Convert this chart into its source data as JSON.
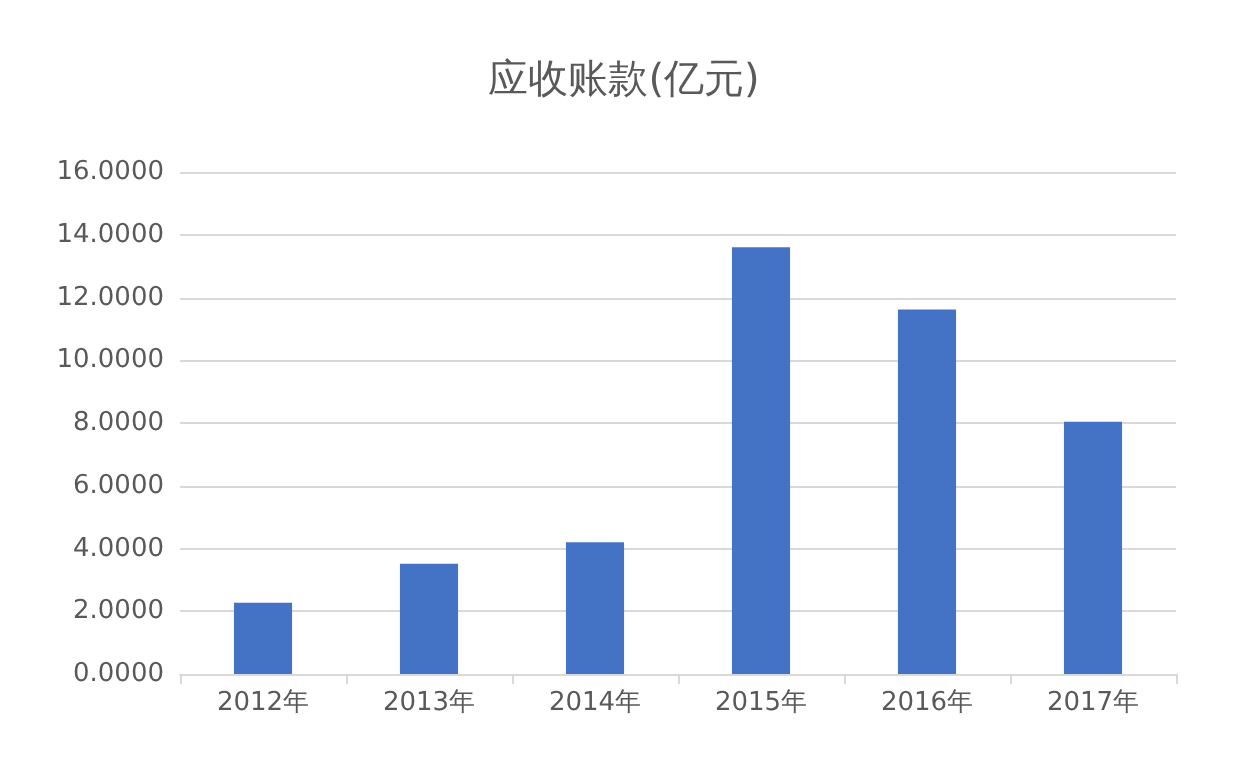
{
  "chart_data": {
    "type": "bar",
    "title": "应收账款(亿元)",
    "categories": [
      "2012年",
      "2013年",
      "2014年",
      "2015年",
      "2016年",
      "2017年"
    ],
    "values": [
      2.27,
      3.51,
      4.2,
      13.6,
      11.62,
      8.04
    ],
    "color": "#4472c4",
    "ylim": [
      0,
      16
    ],
    "yticks": [
      {
        "value": 0,
        "label": "0.0000"
      },
      {
        "value": 2,
        "label": "2.0000"
      },
      {
        "value": 4,
        "label": "4.0000"
      },
      {
        "value": 6,
        "label": "6.0000"
      },
      {
        "value": 8,
        "label": "8.0000"
      },
      {
        "value": 10,
        "label": "10.0000"
      },
      {
        "value": 12,
        "label": "12.0000"
      },
      {
        "value": 14,
        "label": "14.0000"
      },
      {
        "value": 16,
        "label": "16.0000"
      }
    ],
    "grid": "y"
  }
}
